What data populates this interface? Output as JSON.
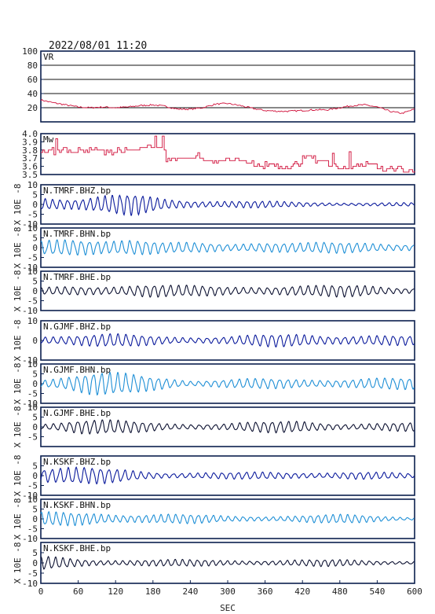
{
  "header": {
    "datetime": "2022/08/01  11:20"
  },
  "xaxis": {
    "label": "SEC",
    "ticks": [
      0,
      60,
      120,
      180,
      240,
      300,
      360,
      420,
      480,
      540,
      600
    ],
    "range": [
      0,
      600
    ]
  },
  "colors": {
    "frame": "#0b1f4e",
    "vr": "#d0103a",
    "mw": "#d0103a",
    "bhz": "#0a1a9c",
    "bhn": "#1e8fd6",
    "bhe": "#0b1030"
  },
  "chart_data": [
    {
      "type": "line",
      "title": "VR",
      "ylim": [
        0,
        100
      ],
      "yticks": [
        20,
        40,
        60,
        80,
        100
      ],
      "ylabel": "",
      "grid": true,
      "x": [
        0,
        20,
        40,
        60,
        80,
        100,
        120,
        140,
        160,
        180,
        200,
        220,
        240,
        260,
        280,
        300,
        320,
        340,
        360,
        380,
        400,
        420,
        440,
        460,
        480,
        500,
        520,
        540,
        560,
        580,
        600
      ],
      "values": [
        31,
        27,
        24,
        21,
        20,
        21,
        20,
        21,
        23,
        24,
        22,
        18,
        18,
        20,
        25,
        26,
        23,
        19,
        16,
        15,
        15,
        16,
        17,
        17,
        20,
        23,
        24,
        21,
        15,
        12,
        18
      ]
    },
    {
      "type": "line",
      "title": "Mw",
      "ylim": [
        3.5,
        4.0
      ],
      "yticks": [
        3.5,
        3.6,
        3.7,
        3.8,
        3.9,
        4.0
      ],
      "yticklabels": [
        "3.5",
        "3.6",
        "3.7",
        "3.8",
        "3.9",
        "4.0"
      ],
      "ylabel": "",
      "grid": false,
      "x": [
        0,
        20,
        40,
        60,
        80,
        100,
        120,
        140,
        160,
        180,
        200,
        220,
        240,
        260,
        280,
        300,
        320,
        340,
        360,
        380,
        400,
        420,
        440,
        460,
        480,
        500,
        520,
        540,
        560,
        580,
        600
      ],
      "values": [
        3.8,
        3.8,
        3.77,
        3.8,
        3.8,
        3.77,
        3.8,
        3.8,
        3.83,
        3.83,
        3.7,
        3.7,
        3.7,
        3.67,
        3.67,
        3.67,
        3.67,
        3.6,
        3.63,
        3.57,
        3.63,
        3.73,
        3.67,
        3.6,
        3.57,
        3.6,
        3.63,
        3.57,
        3.57,
        3.53,
        3.57
      ]
    },
    {
      "type": "line",
      "title": "N.TMRF.BHZ.bp",
      "ylim": [
        -10,
        10
      ],
      "yticks": [
        -10,
        -5,
        0,
        5,
        10
      ],
      "ylabel": "X 10E -8",
      "grid": false,
      "envelope": [
        [
          0,
          5
        ],
        [
          60,
          3.5
        ],
        [
          150,
          5
        ],
        [
          200,
          3
        ],
        [
          300,
          2
        ],
        [
          400,
          1.2
        ],
        [
          600,
          0.8
        ]
      ],
      "period": 12
    },
    {
      "type": "line",
      "title": "N.TMRF.BHN.bp",
      "ylim": [
        -10,
        10
      ],
      "yticks": [
        -10,
        -5,
        0,
        5,
        10
      ],
      "ylabel": "X 10E -8",
      "grid": false,
      "envelope": [
        [
          0,
          3
        ],
        [
          80,
          5
        ],
        [
          140,
          6
        ],
        [
          200,
          2.5
        ],
        [
          300,
          2
        ],
        [
          360,
          4
        ],
        [
          420,
          2.5
        ],
        [
          600,
          2.5
        ]
      ],
      "period": 13
    },
    {
      "type": "line",
      "title": "N.TMRF.BHE.bp",
      "ylim": [
        -10,
        10
      ],
      "yticks": [
        -10,
        -5,
        0,
        5,
        10
      ],
      "ylabel": "X 10E -8",
      "grid": false,
      "envelope": [
        [
          0,
          1.5
        ],
        [
          100,
          3
        ],
        [
          160,
          4
        ],
        [
          220,
          2.5
        ],
        [
          300,
          2.5
        ],
        [
          360,
          3
        ],
        [
          440,
          2.5
        ],
        [
          520,
          3
        ],
        [
          600,
          2
        ]
      ],
      "period": 13
    },
    {
      "type": "line",
      "title": "N.GJMF.BHZ.bp",
      "ylim": [
        -10,
        10
      ],
      "yticks": [
        -10,
        0,
        10
      ],
      "ylabel": "X 10E -8",
      "grid": false,
      "envelope": [
        [
          0,
          3
        ],
        [
          100,
          3
        ],
        [
          200,
          2.5
        ],
        [
          300,
          2
        ],
        [
          420,
          3.5
        ],
        [
          500,
          3
        ],
        [
          600,
          2
        ]
      ],
      "period": 13
    },
    {
      "type": "line",
      "title": "N.GJMF.BHN.bp",
      "ylim": [
        -10,
        10
      ],
      "yticks": [
        -10,
        -5,
        0,
        5,
        10
      ],
      "ylabel": "X 10E -8",
      "grid": false,
      "envelope": [
        [
          0,
          3
        ],
        [
          80,
          5.5
        ],
        [
          200,
          4
        ],
        [
          240,
          2
        ],
        [
          420,
          2.5
        ],
        [
          500,
          3
        ],
        [
          600,
          2.5
        ]
      ],
      "period": 13
    },
    {
      "type": "line",
      "title": "N.GJMF.BHE.bp",
      "ylim": [
        -10,
        10
      ],
      "yticks": [
        -5,
        0,
        5,
        10
      ],
      "ylabel": "X 10E -8",
      "grid": false,
      "envelope": [
        [
          0,
          2
        ],
        [
          60,
          4.5
        ],
        [
          120,
          3
        ],
        [
          200,
          2
        ],
        [
          300,
          2
        ],
        [
          420,
          3
        ],
        [
          500,
          2
        ],
        [
          600,
          2
        ]
      ],
      "period": 13
    },
    {
      "type": "line",
      "title": "N.KSKF.BHZ.bp",
      "ylim": [
        -10,
        10
      ],
      "yticks": [
        -10,
        -5,
        0,
        5
      ],
      "ylabel": "X 10E -8",
      "grid": false,
      "envelope": [
        [
          0,
          5
        ],
        [
          60,
          4
        ],
        [
          140,
          3
        ],
        [
          200,
          2
        ],
        [
          300,
          1.5
        ],
        [
          420,
          2
        ],
        [
          500,
          2
        ],
        [
          600,
          1
        ]
      ],
      "period": 13
    },
    {
      "type": "line",
      "title": "N.KSKF.BHN.bp",
      "ylim": [
        -10,
        10
      ],
      "yticks": [
        -10,
        -5,
        0,
        5,
        10
      ],
      "ylabel": "X 10E -8",
      "grid": false,
      "envelope": [
        [
          0,
          3
        ],
        [
          80,
          3.5
        ],
        [
          200,
          2.5
        ],
        [
          300,
          1.5
        ],
        [
          420,
          2
        ],
        [
          500,
          2
        ],
        [
          600,
          1
        ]
      ],
      "period": 12
    },
    {
      "type": "line",
      "title": "N.KSKF.BHE.bp",
      "ylim": [
        -10,
        10
      ],
      "yticks": [
        -10,
        -5,
        0,
        5
      ],
      "ylabel": "X 10E -8",
      "grid": false,
      "envelope": [
        [
          0,
          3
        ],
        [
          80,
          2
        ],
        [
          200,
          1.5
        ],
        [
          360,
          1.5
        ],
        [
          480,
          1.5
        ],
        [
          600,
          1
        ]
      ],
      "period": 12
    }
  ]
}
